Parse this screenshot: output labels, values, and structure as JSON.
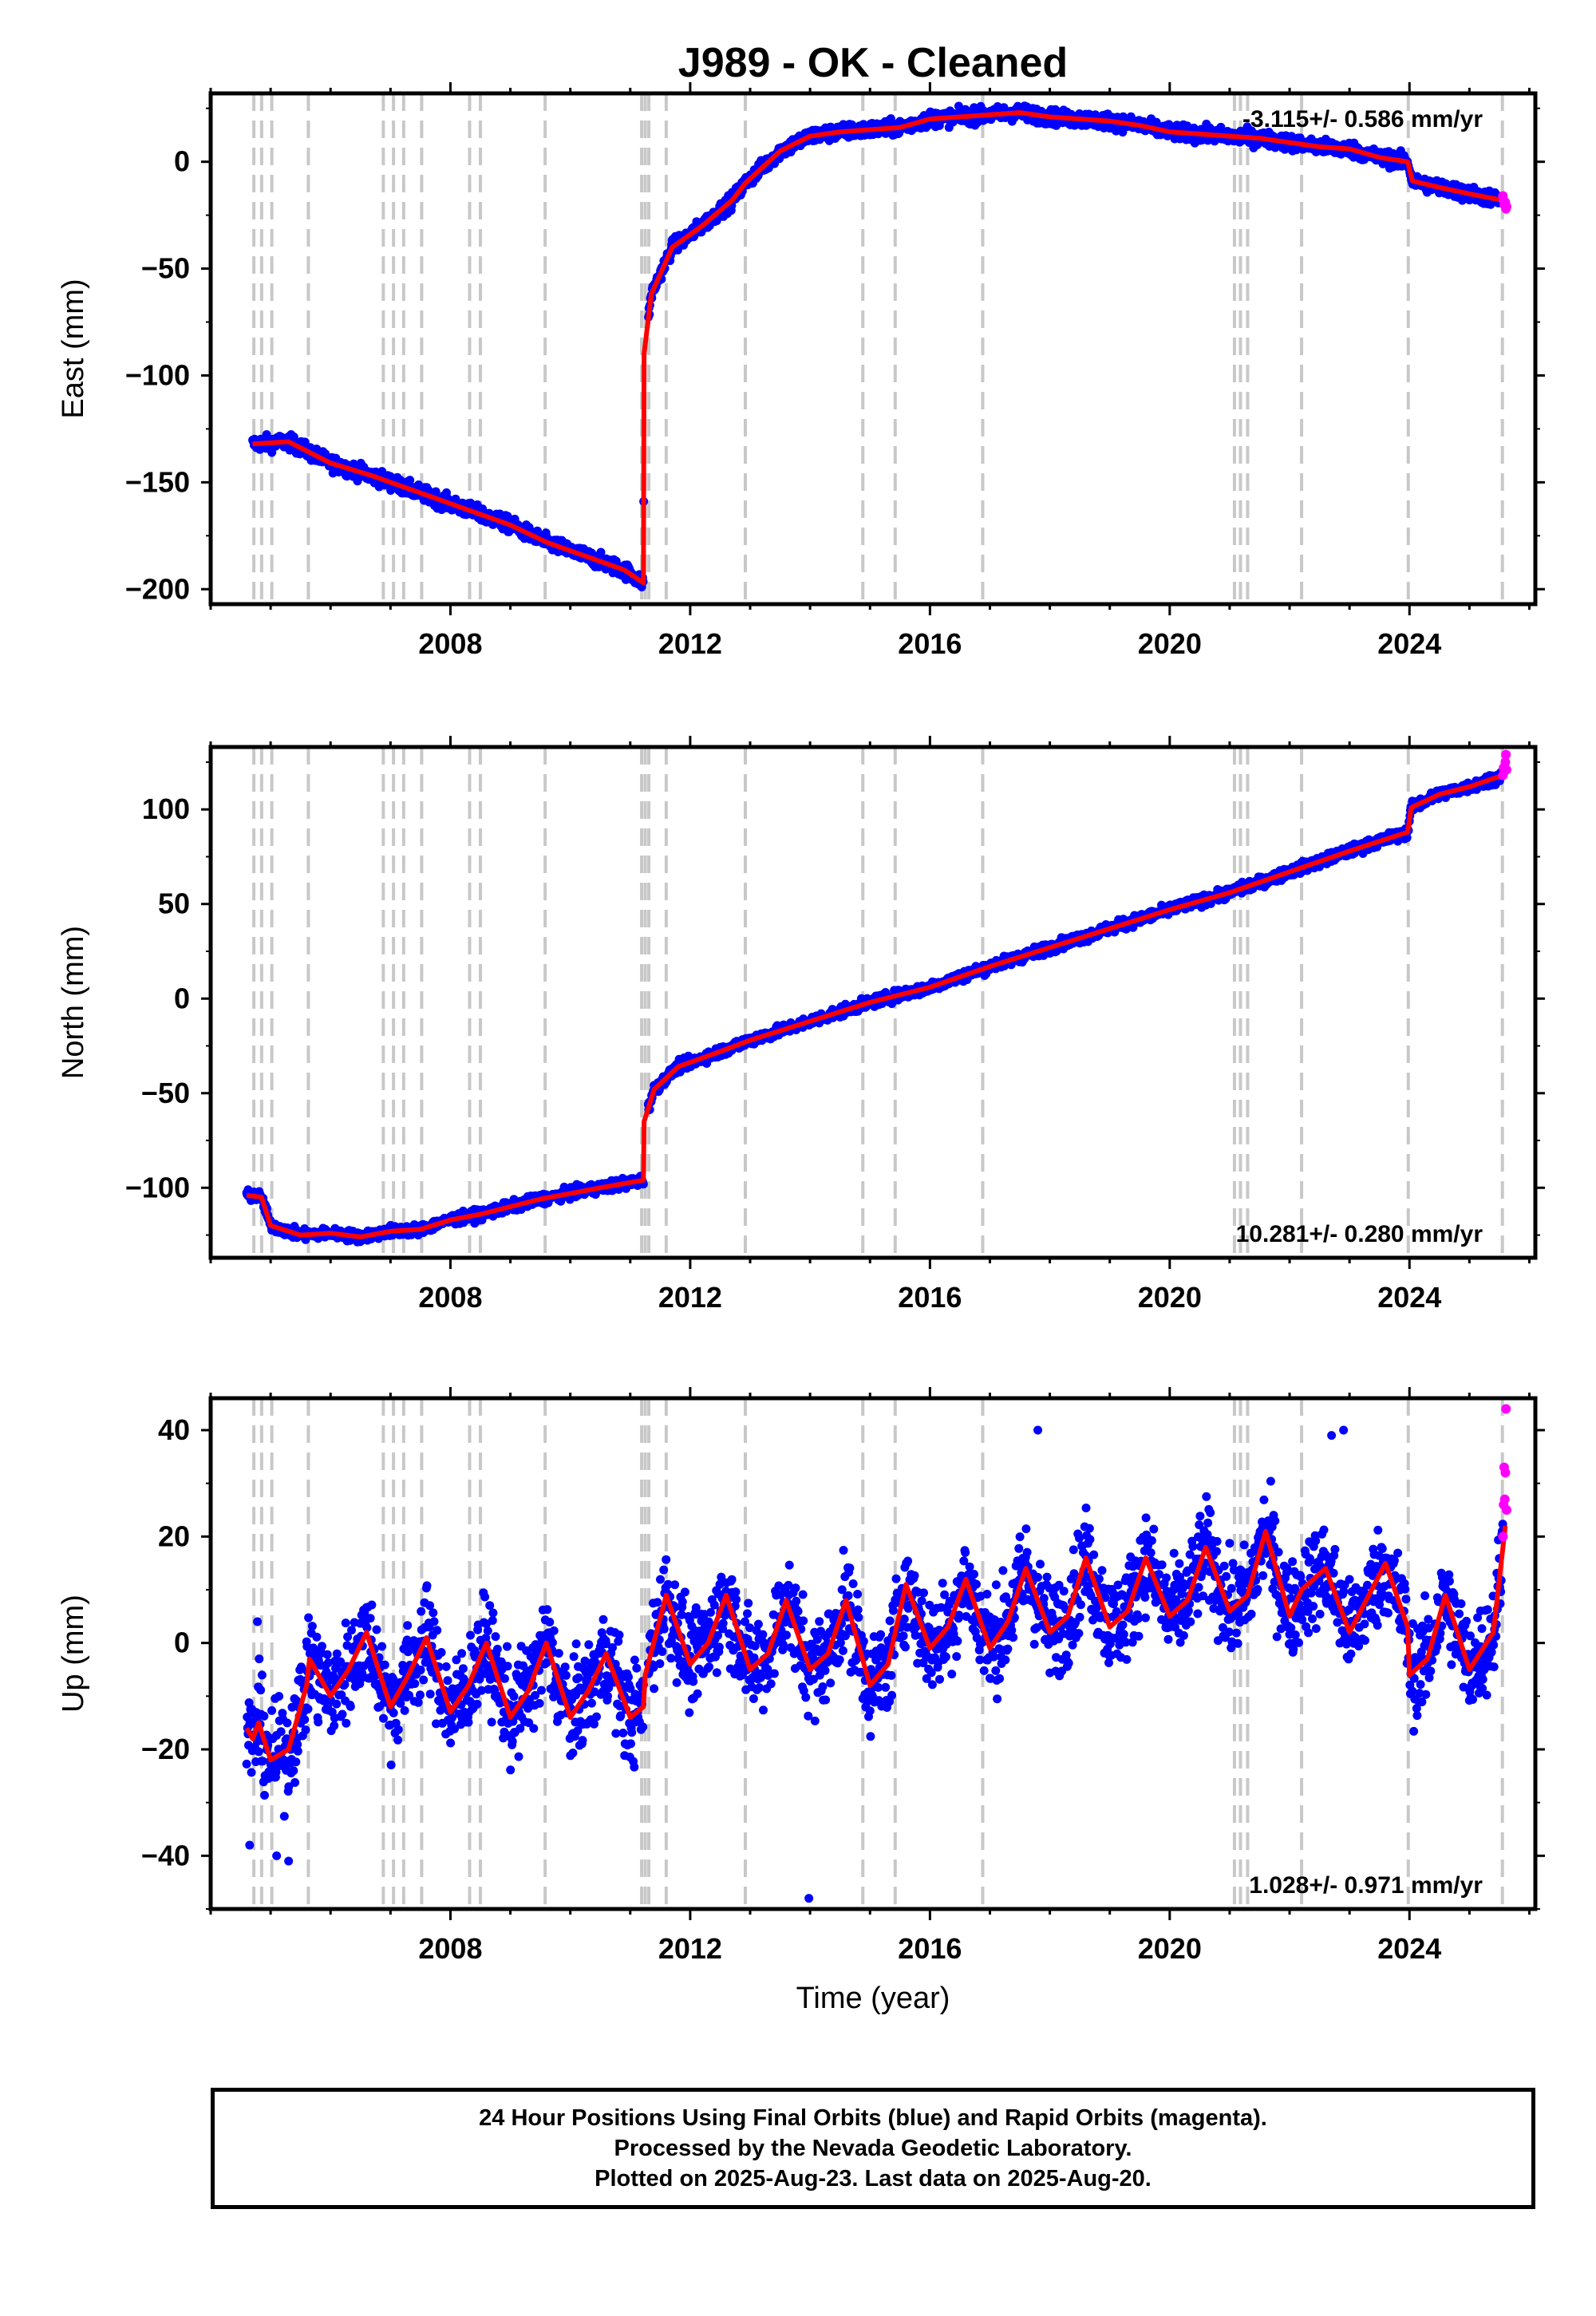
{
  "title": "J989  - OK - Cleaned",
  "colors": {
    "final_orbits": "#0000ff",
    "rapid_orbits": "#ff00ff",
    "model": "#ff0000",
    "steps": "#c8c8c8",
    "frame": "#000000"
  },
  "chart_data": [
    {
      "type": "scatter",
      "panel": "east",
      "ylabel": "East (mm)",
      "xlabel": "",
      "rate_label": "-3.115+/- 0.586 mm/yr",
      "rate_position": "top-right",
      "xlim": [
        2004.0,
        2026.1
      ],
      "ylim": [
        -207,
        32
      ],
      "yticks": [
        0,
        -50,
        -100,
        -150,
        -200
      ],
      "xticks": [
        2008,
        2012,
        2016,
        2020,
        2024
      ],
      "steps": [
        2004.72,
        2004.85,
        2005.02,
        2005.63,
        2006.88,
        2007.05,
        2007.22,
        2007.52,
        2008.32,
        2008.5,
        2009.58,
        2011.19,
        2011.25,
        2011.31,
        2011.6,
        2012.92,
        2014.88,
        2015.42,
        2016.88,
        2021.08,
        2021.18,
        2021.3,
        2022.2,
        2023.98,
        2025.55
      ],
      "model": {
        "x": [
          2004.7,
          2005.3,
          2006.0,
          2006.7,
          2007.2,
          2008.0,
          2009.0,
          2009.6,
          2010.2,
          2010.9,
          2011.22,
          2011.23,
          2011.35,
          2011.7,
          2012.2,
          2012.7,
          2012.92,
          2013.5,
          2014.0,
          2014.5,
          2015.0,
          2015.5,
          2016.0,
          2016.5,
          2017.0,
          2017.5,
          2018.0,
          2018.5,
          2019.0,
          2019.5,
          2020.0,
          2020.5,
          2021.0,
          2021.5,
          2022.0,
          2022.5,
          2023.0,
          2023.5,
          2023.97,
          2024.05,
          2024.5,
          2025.0,
          2025.55
        ],
        "y": [
          -132,
          -131,
          -141,
          -147,
          -152,
          -160,
          -170,
          -178,
          -184,
          -191,
          -197,
          -90,
          -62,
          -40,
          -30,
          -18,
          -10,
          5,
          12,
          14,
          15,
          16,
          20,
          21,
          22,
          23,
          21,
          20,
          19,
          17,
          14,
          13,
          12,
          11,
          9,
          7,
          6,
          2,
          0,
          -9,
          -12,
          -15,
          -18
        ]
      },
      "rapid": {
        "x": [
          2025.56,
          2025.57,
          2025.58,
          2025.6,
          2025.61,
          2025.62
        ],
        "y": [
          -16,
          -18,
          -20,
          -19,
          -22,
          -21
        ]
      },
      "noise_sd": 2.5
    },
    {
      "type": "scatter",
      "panel": "north",
      "ylabel": "North (mm)",
      "xlabel": "",
      "rate_label": "10.281+/- 0.280 mm/yr",
      "rate_position": "bottom-right",
      "xlim": [
        2004.0,
        2026.1
      ],
      "ylim": [
        -137,
        133
      ],
      "yticks": [
        100,
        50,
        0,
        -50,
        -100
      ],
      "xticks": [
        2008,
        2012,
        2016,
        2020,
        2024
      ],
      "steps": [
        2004.72,
        2004.85,
        2005.02,
        2005.63,
        2006.88,
        2007.05,
        2007.22,
        2007.52,
        2008.32,
        2008.5,
        2009.58,
        2011.19,
        2011.25,
        2011.31,
        2011.6,
        2012.92,
        2014.88,
        2015.42,
        2016.88,
        2021.08,
        2021.18,
        2021.3,
        2022.2,
        2023.98,
        2025.55
      ],
      "model": {
        "x": [
          2004.6,
          2004.85,
          2005.0,
          2005.5,
          2006.0,
          2006.5,
          2007.0,
          2007.5,
          2008.0,
          2008.5,
          2009.0,
          2009.5,
          2010.0,
          2010.5,
          2011.22,
          2011.23,
          2011.4,
          2011.8,
          2012.5,
          2013.0,
          2014.0,
          2015.0,
          2016.0,
          2017.0,
          2018.0,
          2019.0,
          2020.0,
          2021.0,
          2022.0,
          2023.0,
          2023.97,
          2024.03,
          2024.5,
          2025.0,
          2025.55
        ],
        "y": [
          -104,
          -105,
          -120,
          -125,
          -124,
          -126,
          -123,
          -122,
          -117,
          -114,
          -110,
          -106,
          -103,
          -100,
          -96,
          -65,
          -48,
          -36,
          -28,
          -22,
          -12,
          -2,
          6,
          17,
          27,
          37,
          47,
          56,
          67,
          78,
          88,
          101,
          108,
          112,
          118
        ]
      },
      "rapid": {
        "x": [
          2025.56,
          2025.57,
          2025.58,
          2025.6,
          2025.61,
          2025.62
        ],
        "y": [
          118,
          122,
          120,
          125,
          129,
          121
        ]
      },
      "noise_sd": 2.0
    },
    {
      "type": "scatter",
      "panel": "up",
      "ylabel": "Up (mm)",
      "xlabel": "Time (year)",
      "rate_label": "1.028+/- 0.971 mm/yr",
      "rate_position": "bottom-right",
      "xlim": [
        2004.0,
        2026.1
      ],
      "ylim": [
        -50,
        46
      ],
      "yticks": [
        40,
        20,
        0,
        -20,
        -40
      ],
      "xticks": [
        2008,
        2012,
        2016,
        2020,
        2024
      ],
      "steps": [
        2004.72,
        2004.85,
        2005.02,
        2005.63,
        2006.88,
        2007.05,
        2007.22,
        2007.52,
        2008.32,
        2008.5,
        2009.58,
        2011.19,
        2011.25,
        2011.31,
        2011.6,
        2012.92,
        2014.88,
        2015.42,
        2016.88,
        2021.08,
        2021.18,
        2021.3,
        2022.2,
        2023.98,
        2025.55
      ],
      "model": {
        "x": [
          2004.6,
          2004.7,
          2004.8,
          2005.0,
          2005.3,
          2005.6,
          2005.65,
          2006.0,
          2006.3,
          2006.6,
          2007.0,
          2007.3,
          2007.6,
          2008.0,
          2008.3,
          2008.6,
          2009.0,
          2009.3,
          2009.6,
          2010.0,
          2010.3,
          2010.6,
          2011.0,
          2011.22,
          2011.25,
          2011.6,
          2012.0,
          2012.3,
          2012.6,
          2013.0,
          2013.3,
          2013.6,
          2014.0,
          2014.3,
          2014.6,
          2015.0,
          2015.3,
          2015.6,
          2016.0,
          2016.3,
          2016.6,
          2017.0,
          2017.3,
          2017.6,
          2018.0,
          2018.3,
          2018.6,
          2019.0,
          2019.3,
          2019.6,
          2020.0,
          2020.3,
          2020.6,
          2021.0,
          2021.3,
          2021.6,
          2022.0,
          2022.2,
          2022.6,
          2023.0,
          2023.6,
          2023.97,
          2024.0,
          2024.3,
          2024.6,
          2025.0,
          2025.4,
          2025.6
        ],
        "y": [
          -16,
          -18,
          -15,
          -22,
          -20,
          -8,
          -3,
          -10,
          -5,
          2,
          -12,
          -6,
          1,
          -13,
          -8,
          0,
          -14,
          -9,
          0,
          -14,
          -9,
          -2,
          -14,
          -12,
          -6,
          9,
          -4,
          0,
          9,
          -5,
          -2,
          8,
          -5,
          -2,
          8,
          -8,
          -4,
          11,
          -1,
          3,
          12,
          -1,
          4,
          14,
          2,
          5,
          16,
          3,
          6,
          16,
          5,
          8,
          18,
          6,
          9,
          21,
          5,
          10,
          14,
          2,
          15,
          3,
          -6,
          -3,
          9,
          -5,
          2,
          22
        ]
      },
      "rapid": {
        "x": [
          2025.56,
          2025.57,
          2025.58,
          2025.59,
          2025.6,
          2025.61,
          2025.62
        ],
        "y": [
          20,
          26,
          33,
          27,
          32,
          44,
          25
        ]
      },
      "noise_sd": 6.5,
      "outliers": {
        "x": [
          2004.65,
          2004.78,
          2005.1,
          2005.3,
          2013.98,
          2017.8,
          2022.7,
          2022.9
        ],
        "y": [
          -38,
          4,
          -40,
          -41,
          -48,
          40,
          39,
          40
        ]
      }
    }
  ],
  "footer": {
    "line1": "24 Hour Positions Using Final Orbits (blue) and Rapid Orbits (magenta).",
    "line2": "Processed by the Nevada Geodetic Laboratory.",
    "line3": "Plotted on 2025-Aug-23. Last data on 2025-Aug-20."
  }
}
